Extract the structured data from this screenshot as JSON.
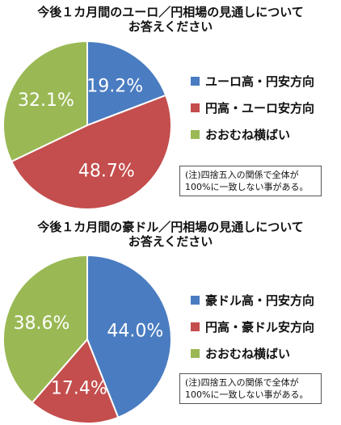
{
  "chart_data": [
    {
      "type": "pie",
      "title": "今後１カ月間のユーロ／円相場の見通しについて お答えください",
      "title_lines": [
        "今後１カ月間のユーロ／円相場の見通しについて",
        "お答えください"
      ],
      "categories": [
        "ユーロ高・円安方向",
        "円高・ユーロ安方向",
        "おおむね横ばい"
      ],
      "values": [
        19.2,
        48.7,
        32.1
      ],
      "labels": [
        "19.2%",
        "48.7%",
        "32.1%"
      ],
      "colors": [
        "#4a7cc1",
        "#c44d4d",
        "#9ab955"
      ],
      "legend_position": "right",
      "note_lines": [
        "(注)四捨五入の関係で全体が",
        "100%に一致しない事がある。"
      ]
    },
    {
      "type": "pie",
      "title": "今後１カ月間の豪ドル／円相場の見通しについて お答えください",
      "title_lines": [
        "今後１カ月間の豪ドル／円相場の見通しについて",
        "お答えください"
      ],
      "categories": [
        "豪ドル高・円安方向",
        "円高・豪ドル安方向",
        "おおむね横ばい"
      ],
      "values": [
        44.0,
        17.4,
        38.6
      ],
      "labels": [
        "44.0%",
        "17.4%",
        "38.6%"
      ],
      "colors": [
        "#4a7cc1",
        "#c44d4d",
        "#9ab955"
      ],
      "legend_position": "right",
      "note_lines": [
        "(注)四捨五入の関係で全体が",
        "100%に一致しない事がある。"
      ]
    }
  ]
}
